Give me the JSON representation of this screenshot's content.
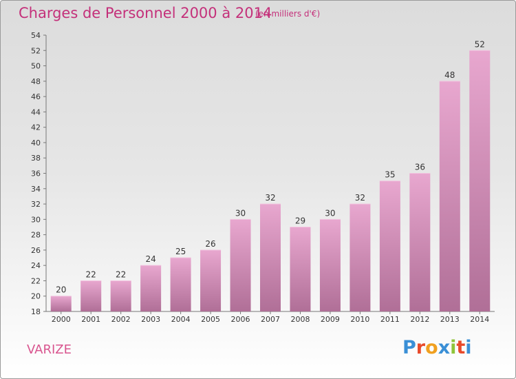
{
  "header": {
    "title": "Charges de Personnel 2000 à 2014",
    "subtitle": "(en milliers d'€)"
  },
  "footer": {
    "commune": "VARIZE",
    "logo": "Proxiti"
  },
  "colors": {
    "title": "#c4307a",
    "bar_top": "#e8a7cf",
    "bar_bottom": "#b06f97",
    "commune": "#d9558f"
  },
  "chart_data": {
    "type": "bar",
    "title": "Charges de Personnel 2000 à 2014",
    "subtitle": "(en milliers d'€)",
    "categories": [
      "2000",
      "2001",
      "2002",
      "2003",
      "2004",
      "2005",
      "2006",
      "2007",
      "2008",
      "2009",
      "2010",
      "2011",
      "2012",
      "2013",
      "2014"
    ],
    "values": [
      20,
      22,
      22,
      24,
      25,
      26,
      30,
      32,
      29,
      30,
      32,
      35,
      36,
      48,
      52
    ],
    "ylim": [
      18,
      54
    ],
    "yticks": [
      18,
      20,
      22,
      24,
      26,
      28,
      30,
      32,
      34,
      36,
      38,
      40,
      42,
      44,
      46,
      48,
      50,
      52,
      54
    ],
    "grid": false,
    "data_labels": true
  }
}
